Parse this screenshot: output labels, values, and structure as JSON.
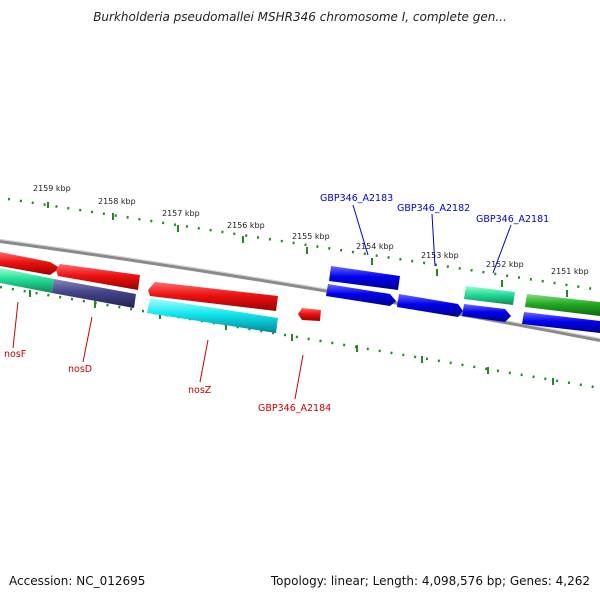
{
  "title": "Burkholderia pseudomallei MSHR346 chromosome I, complete gen...",
  "footer": {
    "accession": "Accession: NC_012695",
    "summary": "Topology: linear; Length: 4,098,576 bp; Genes: 4,262"
  },
  "ruler_labels": [
    "2159 kbp",
    "2158 kbp",
    "2157 kbp",
    "2156 kbp",
    "2155 kbp",
    "2154 kbp",
    "2153 kbp",
    "2152 kbp",
    "2151 kbp"
  ],
  "genes_top": [
    "GBP346_A2183",
    "GBP346_A2182",
    "GBP346_A2181"
  ],
  "genes_bottom": [
    "nosF",
    "nosD",
    "nosZ",
    "GBP346_A2184"
  ],
  "colors": {
    "red": "#ee1111",
    "blue": "#0000ee",
    "cyan": "#11eeee",
    "teal": "#22dd99",
    "navy": "#444488",
    "green": "#22aa22",
    "ticks": "#228822",
    "backbone": "#888888",
    "label_red": "#cc0000",
    "label_blue": "#0000cc"
  }
}
